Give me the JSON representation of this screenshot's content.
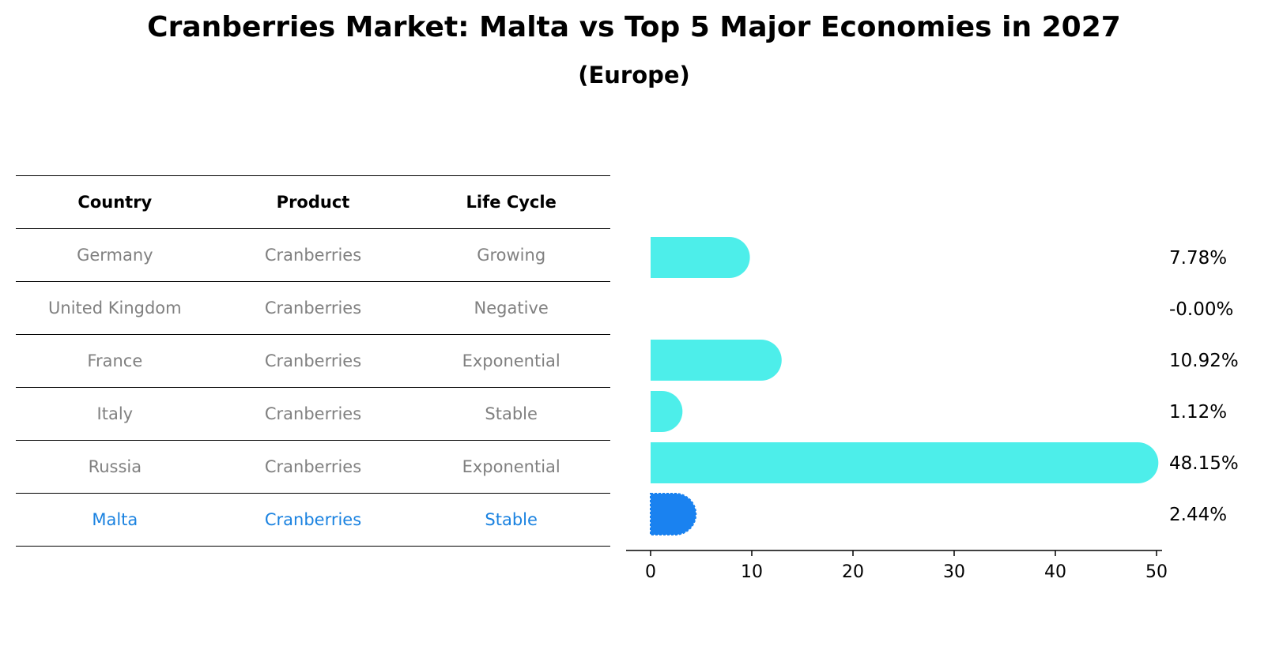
{
  "title": "Cranberries Market: Malta vs Top 5 Major Economies in 2027",
  "subtitle": "(Europe)",
  "table": {
    "headers": [
      "Country",
      "Product",
      "Life Cycle"
    ],
    "rows": [
      [
        "Germany",
        "Cranberries",
        "Growing"
      ],
      [
        "United Kingdom",
        "Cranberries",
        "Negative"
      ],
      [
        "France",
        "Cranberries",
        "Exponential"
      ],
      [
        "Italy",
        "Cranberries",
        "Stable"
      ],
      [
        "Russia",
        "Cranberries",
        "Exponential"
      ],
      [
        "Malta",
        "Cranberries",
        "Stable"
      ]
    ]
  },
  "colors": {
    "bar": "#4deeea",
    "highlight": "#1a82f0",
    "highlight_text": "#1a82e0",
    "muted_text": "#808080"
  },
  "chart_data": {
    "type": "bar",
    "orientation": "horizontal",
    "categories": [
      "Germany",
      "United Kingdom",
      "France",
      "Italy",
      "Russia",
      "Malta"
    ],
    "values": [
      7.78,
      -0.0,
      10.92,
      1.12,
      48.15,
      2.44
    ],
    "value_labels": [
      "7.78%",
      "-0.00%",
      "10.92%",
      "1.12%",
      "48.15%",
      "2.44%"
    ],
    "highlight": "Malta",
    "xlim": [
      0,
      50
    ],
    "xticks": [
      0,
      10,
      20,
      30,
      40,
      50
    ],
    "xlabel": "",
    "ylabel": "",
    "grid": false
  }
}
